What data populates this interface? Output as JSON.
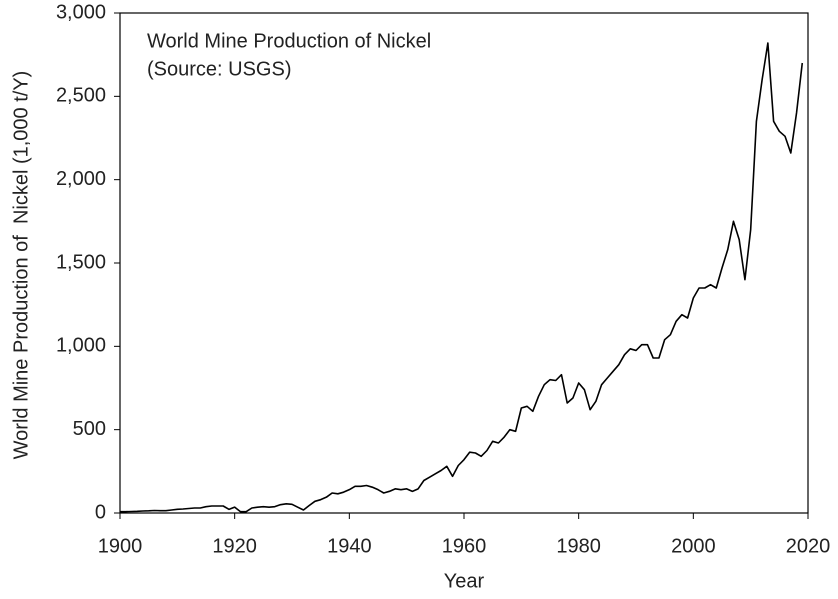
{
  "chart_data": {
    "type": "line",
    "title": "World Mine Production of Nickel",
    "subtitle": "(Source: USGS)",
    "xlabel": "Year",
    "ylabel": "World Mine Production of  Nickel (1,000 t/Y)",
    "x": [
      1900,
      1901,
      1902,
      1903,
      1904,
      1905,
      1906,
      1907,
      1908,
      1909,
      1910,
      1911,
      1912,
      1913,
      1914,
      1915,
      1916,
      1917,
      1918,
      1919,
      1920,
      1921,
      1922,
      1923,
      1924,
      1925,
      1926,
      1927,
      1928,
      1929,
      1930,
      1931,
      1932,
      1933,
      1934,
      1935,
      1936,
      1937,
      1938,
      1939,
      1940,
      1941,
      1942,
      1943,
      1944,
      1945,
      1946,
      1947,
      1948,
      1949,
      1950,
      1951,
      1952,
      1953,
      1954,
      1955,
      1956,
      1957,
      1958,
      1959,
      1960,
      1961,
      1962,
      1963,
      1964,
      1965,
      1966,
      1967,
      1968,
      1969,
      1970,
      1971,
      1972,
      1973,
      1974,
      1975,
      1976,
      1977,
      1978,
      1979,
      1980,
      1981,
      1982,
      1983,
      1984,
      1985,
      1986,
      1987,
      1988,
      1989,
      1990,
      1991,
      1992,
      1993,
      1994,
      1995,
      1996,
      1997,
      1998,
      1999,
      2000,
      2001,
      2002,
      2003,
      2004,
      2005,
      2006,
      2007,
      2008,
      2009,
      2010,
      2011,
      2012,
      2013,
      2014,
      2015,
      2016,
      2017,
      2018,
      2019
    ],
    "values": [
      8,
      8,
      9,
      10,
      12,
      13,
      15,
      14,
      14,
      18,
      22,
      24,
      27,
      30,
      30,
      38,
      42,
      42,
      42,
      22,
      35,
      8,
      8,
      30,
      35,
      38,
      35,
      38,
      50,
      55,
      52,
      35,
      18,
      45,
      70,
      80,
      95,
      120,
      115,
      125,
      140,
      160,
      160,
      165,
      155,
      140,
      120,
      130,
      145,
      140,
      145,
      130,
      145,
      195,
      215,
      235,
      255,
      280,
      220,
      285,
      320,
      365,
      360,
      340,
      375,
      430,
      420,
      455,
      500,
      490,
      630,
      640,
      610,
      700,
      770,
      800,
      795,
      830,
      660,
      690,
      780,
      740,
      620,
      670,
      770,
      810,
      850,
      890,
      950,
      985,
      975,
      1010,
      1010,
      930,
      930,
      1040,
      1070,
      1150,
      1190,
      1170,
      1290,
      1350,
      1350,
      1370,
      1350,
      1470,
      1580,
      1750,
      1640,
      1400,
      1700,
      2350,
      2600,
      2820,
      2350,
      2290,
      2260,
      2160,
      2400,
      2700
    ],
    "color": "#000000",
    "xlim": [
      1900,
      2020
    ],
    "xticks": [
      1900,
      1920,
      1940,
      1960,
      1980,
      2000,
      2020
    ],
    "ylim": [
      0,
      3000
    ],
    "yticks": [
      0,
      500,
      {
        "value": 1000,
        "label": "1,000"
      },
      {
        "value": 1500,
        "label": "1,500"
      },
      {
        "value": 2000,
        "label": "2,000"
      },
      {
        "value": 2500,
        "label": "2,500"
      },
      {
        "value": 3000,
        "label": "3,000"
      }
    ],
    "grid": false
  }
}
